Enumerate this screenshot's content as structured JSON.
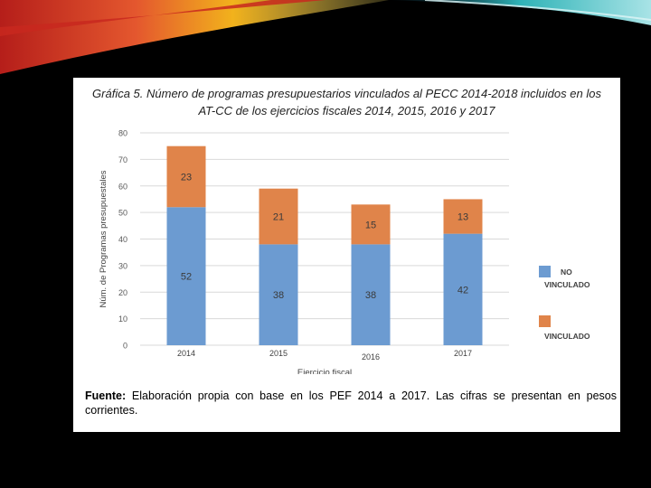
{
  "slide": {
    "title_line1": "Gráfica 5. Número de programas presupuestarios vinculados al PECC 2014-2018 incluidos en los",
    "title_line2": "AT-CC de los ejercicios fiscales 2014, 2015, 2016 y 2017",
    "source_label": "Fuente:",
    "source_text": " Elaboración propia con base en los PEF 2014 a 2017. Las cifras se presentan en pesos corrientes."
  },
  "colors": {
    "no_vinculado": "#6c9bd1",
    "vinculado": "#e0844a",
    "swoosh_red": "#c8281e",
    "swoosh_yellow": "#f2b21c",
    "swoosh_teal": "#2fb3b7"
  },
  "chart_data": {
    "type": "bar",
    "stacked": true,
    "categories": [
      "2014",
      "2015",
      "2016",
      "2017"
    ],
    "series": [
      {
        "name": "NO VINCULADO",
        "legend_line1": "NO",
        "legend_line2": "VINCULADO",
        "values": [
          52,
          38,
          38,
          42
        ]
      },
      {
        "name": "VINCULADO",
        "legend_line1": "VINCULADO",
        "legend_line2": "",
        "values": [
          23,
          21,
          15,
          13
        ]
      }
    ],
    "xlabel": "Ejercicio fiscal",
    "ylabel": "Núm. de Programas presupuestales",
    "ylim": [
      0,
      80
    ],
    "yticks": [
      0,
      10,
      20,
      30,
      40,
      50,
      60,
      70,
      80
    ],
    "grid": true,
    "legend": "right"
  }
}
